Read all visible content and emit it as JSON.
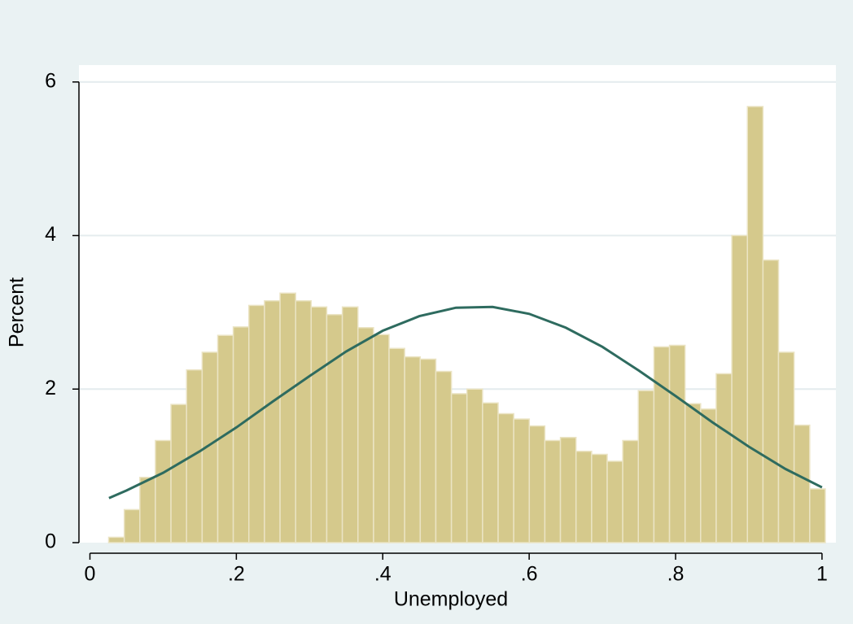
{
  "chart_data": {
    "type": "histogram",
    "xlabel": "Unemployed",
    "ylabel": "Percent",
    "bins": [
      0.0256,
      0.0469,
      0.0682,
      0.0894,
      0.1107,
      0.132,
      0.1533,
      0.1746,
      0.1958,
      0.2171,
      0.2384,
      0.2597,
      0.281,
      0.3022,
      0.3235,
      0.3448,
      0.3661,
      0.3874,
      0.4086,
      0.4299,
      0.4512,
      0.4725,
      0.4938,
      0.515,
      0.5363,
      0.5576,
      0.5789,
      0.6002,
      0.6214,
      0.6427,
      0.664,
      0.6853,
      0.7066,
      0.7278,
      0.7491,
      0.7704,
      0.7917,
      0.813,
      0.8342,
      0.8555,
      0.8768,
      0.8981,
      0.9194,
      0.9406,
      0.9619,
      0.9832,
      1.0045
    ],
    "values": [
      0.07,
      0.43,
      0.85,
      1.33,
      1.8,
      2.25,
      2.48,
      2.7,
      2.81,
      3.09,
      3.15,
      3.25,
      3.15,
      3.07,
      2.97,
      3.07,
      2.8,
      2.71,
      2.53,
      2.42,
      2.39,
      2.23,
      1.94,
      2.0,
      1.82,
      1.68,
      1.61,
      1.52,
      1.33,
      1.37,
      1.19,
      1.15,
      1.06,
      1.33,
      1.98,
      2.55,
      2.57,
      1.81,
      1.74,
      2.2,
      4.0,
      5.68,
      3.68,
      2.48,
      1.53,
      0.7
    ],
    "color": "#d5c98c",
    "overlay": {
      "type": "line",
      "color": "#2e6b5f",
      "x": [
        0.026,
        0.05,
        0.1,
        0.15,
        0.2,
        0.25,
        0.3,
        0.35,
        0.4,
        0.45,
        0.5,
        0.55,
        0.6,
        0.65,
        0.7,
        0.75,
        0.8,
        0.85,
        0.9,
        0.95,
        1.0
      ],
      "values": [
        0.58,
        0.68,
        0.91,
        1.19,
        1.5,
        1.84,
        2.17,
        2.49,
        2.76,
        2.95,
        3.06,
        3.07,
        2.98,
        2.8,
        2.55,
        2.24,
        1.91,
        1.57,
        1.25,
        0.96,
        0.72
      ]
    },
    "xlim": [
      -0.015,
      1.019
    ],
    "ylim": [
      0,
      6.22
    ],
    "xticks": [
      0,
      {
        "value": 0.2,
        "label": ".2"
      },
      {
        "value": 0.4,
        "label": ".4"
      },
      {
        "value": 0.6,
        "label": ".6"
      },
      {
        "value": 0.8,
        "label": ".8"
      },
      1
    ],
    "yticks": [
      0,
      2,
      4,
      6
    ],
    "grid": true
  }
}
